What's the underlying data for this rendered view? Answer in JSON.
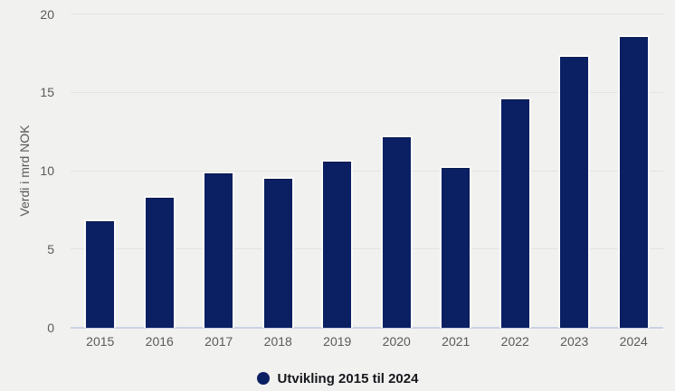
{
  "chart_data": {
    "type": "bar",
    "title": "",
    "xlabel": "",
    "ylabel": "Verdi i mrd NOK",
    "categories": [
      "2015",
      "2016",
      "2017",
      "2018",
      "2019",
      "2020",
      "2021",
      "2022",
      "2023",
      "2024"
    ],
    "values": [
      6.9,
      8.4,
      10.0,
      9.6,
      10.7,
      12.3,
      10.3,
      14.7,
      17.4,
      18.7
    ],
    "ylim": [
      0,
      20
    ],
    "yticks": [
      0,
      5,
      10,
      15,
      20
    ],
    "grid": "horizontal",
    "legend": {
      "position": "bottom",
      "label": "Utvikling 2015 til 2024"
    },
    "colors": {
      "bar": "#0b1f63",
      "background": "#f1f1ef",
      "gridline": "#e3e3e1",
      "axis_line": "#cbd1e6",
      "tick_text": "#5a5a5c",
      "legend_text": "#16181d"
    }
  }
}
